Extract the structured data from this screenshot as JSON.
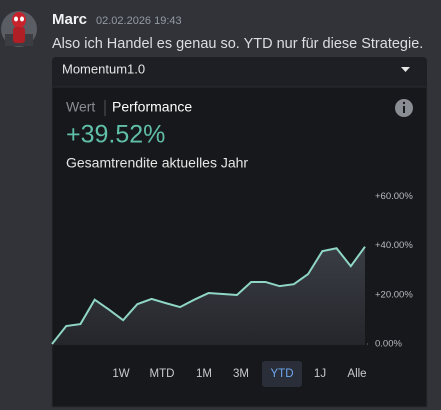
{
  "message": {
    "author": "Marc",
    "timestamp": "02.02.2026 19:43",
    "text": "Also ich Handel es genau so. YTD nur für diese Strategie."
  },
  "card": {
    "dropdown": "Momentum1.0",
    "tabs": [
      "Wert",
      "Performance"
    ],
    "headline": "+39.52%",
    "caption": "Gesamtrendite aktuelles Jahr",
    "chart": {
      "type": "line",
      "color": "#8fd6c6",
      "values": [
        0,
        7.3,
        8.1,
        18,
        14,
        9.7,
        16.2,
        18.3,
        16.6,
        15,
        18,
        20.7,
        20.3,
        19.9,
        25.2,
        25.2,
        23.5,
        24.3,
        28.4,
        37.7,
        38.9,
        31.6,
        39.52
      ],
      "ylim": [
        0,
        65
      ],
      "yticks": [
        {
          "value": 60,
          "label": "+60.00%"
        },
        {
          "value": 40,
          "label": "+40.00%"
        },
        {
          "value": 20,
          "label": "+20.00%"
        },
        {
          "value": 0,
          "label": "0.00%"
        }
      ]
    },
    "ranges": [
      "1W",
      "MTD",
      "1M",
      "3M",
      "YTD",
      "1J",
      "Alle"
    ],
    "selected_range": "YTD"
  }
}
